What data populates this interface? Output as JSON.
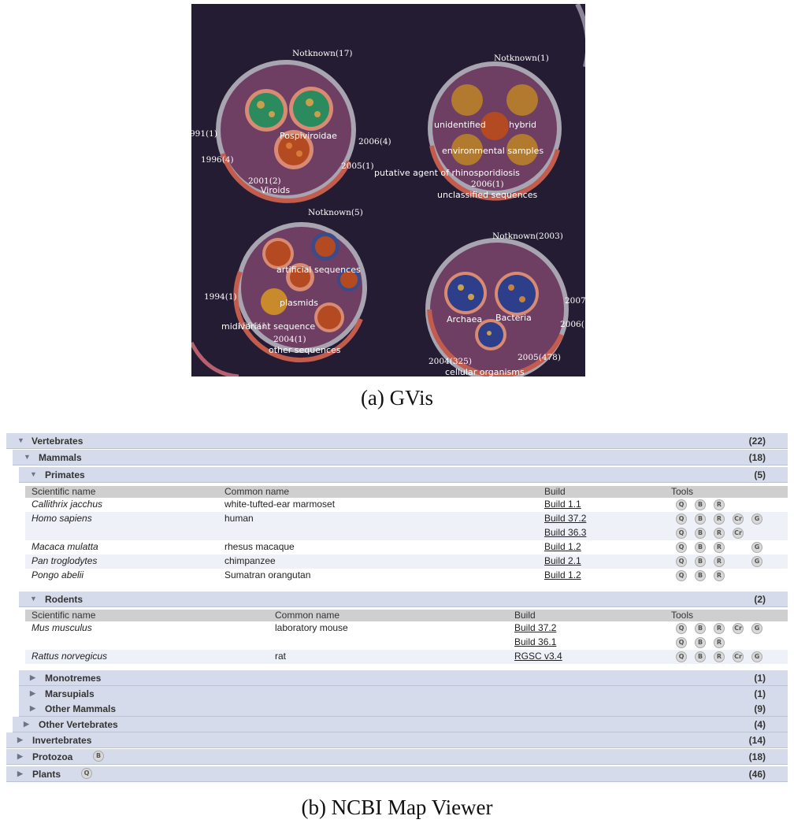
{
  "gvis": {
    "caption": "(a)  GVis",
    "clusters": [
      {
        "top": "Notknown(17)",
        "labels": [
          "991(1)",
          "1996(4)",
          "2001(2)",
          "2006(4)",
          "2005(1)",
          "Pospiviroidae",
          "Viroids"
        ]
      },
      {
        "top": "Notknown(1)",
        "labels": [
          "unidentified",
          "hybrid",
          "environmental samples",
          "putative agent of rhinosporidiosis",
          "2006(1)",
          "unclassified sequences"
        ]
      },
      {
        "top": "Notknown(5)",
        "labels": [
          "artificial sequences",
          "1994(1)",
          "plasmids",
          "midivariant sequence",
          "2004(1)",
          "other sequences",
          "1996(1)"
        ]
      },
      {
        "top": "Notknown(2003)",
        "labels": [
          "Archaea",
          "Bacteria",
          "2007",
          "2006(",
          "2004(325)",
          "2005(478)",
          "cellular organisms"
        ]
      }
    ]
  },
  "mapviewer": {
    "caption": "(b)  NCBI Map Viewer",
    "headers": {
      "sci": "Scientific name",
      "common": "Common name",
      "build": "Build",
      "tools": "Tools"
    },
    "vertebrates": {
      "label": "Vertebrates",
      "count": "(22)"
    },
    "mammals": {
      "label": "Mammals",
      "count": "(18)"
    },
    "primates": {
      "label": "Primates",
      "count": "(5)"
    },
    "primate_rows": [
      {
        "sci": "Callithrix jacchus",
        "common": "white-tufted-ear marmoset",
        "builds": [
          "Build 1.1"
        ],
        "tools": [
          [
            "Q",
            "B",
            "R"
          ]
        ]
      },
      {
        "sci": "Homo sapiens",
        "common": "human",
        "builds": [
          "Build 37.2",
          "Build 36.3"
        ],
        "tools": [
          [
            "Q",
            "B",
            "R",
            "Cr",
            "G"
          ],
          [
            "Q",
            "B",
            "R",
            "Cr"
          ]
        ]
      },
      {
        "sci": "Macaca mulatta",
        "common": "rhesus macaque",
        "builds": [
          "Build 1.2"
        ],
        "tools": [
          [
            "Q",
            "B",
            "R",
            "",
            "G"
          ]
        ]
      },
      {
        "sci": "Pan troglodytes",
        "common": "chimpanzee",
        "builds": [
          "Build 2.1"
        ],
        "tools": [
          [
            "Q",
            "B",
            "R",
            "",
            "G"
          ]
        ]
      },
      {
        "sci": "Pongo abelii",
        "common": "Sumatran orangutan",
        "builds": [
          "Build 1.2"
        ],
        "tools": [
          [
            "Q",
            "B",
            "R"
          ]
        ]
      }
    ],
    "rodents": {
      "label": "Rodents",
      "count": "(2)"
    },
    "rodent_rows": [
      {
        "sci": "Mus musculus",
        "common": "laboratory mouse",
        "builds": [
          "Build 37.2",
          "Build 36.1"
        ],
        "tools": [
          [
            "Q",
            "B",
            "R",
            "Cr",
            "G"
          ],
          [
            "Q",
            "B",
            "R"
          ]
        ]
      },
      {
        "sci": "Rattus norvegicus",
        "common": "rat",
        "builds": [
          "RGSC v3.4"
        ],
        "tools": [
          [
            "Q",
            "B",
            "R",
            "Cr",
            "G"
          ]
        ]
      }
    ],
    "monotremes": {
      "label": "Monotremes",
      "count": "(1)"
    },
    "marsupials": {
      "label": "Marsupials",
      "count": "(1)"
    },
    "other_mammals": {
      "label": "Other Mammals",
      "count": "(9)"
    },
    "other_vertebrates": {
      "label": "Other Vertebrates",
      "count": "(4)"
    },
    "invertebrates": {
      "label": "Invertebrates",
      "count": "(14)"
    },
    "protozoa": {
      "label": "Protozoa",
      "count": "(18)",
      "tool": "B"
    },
    "plants": {
      "label": "Plants",
      "count": "(46)",
      "tool": "Q"
    }
  }
}
